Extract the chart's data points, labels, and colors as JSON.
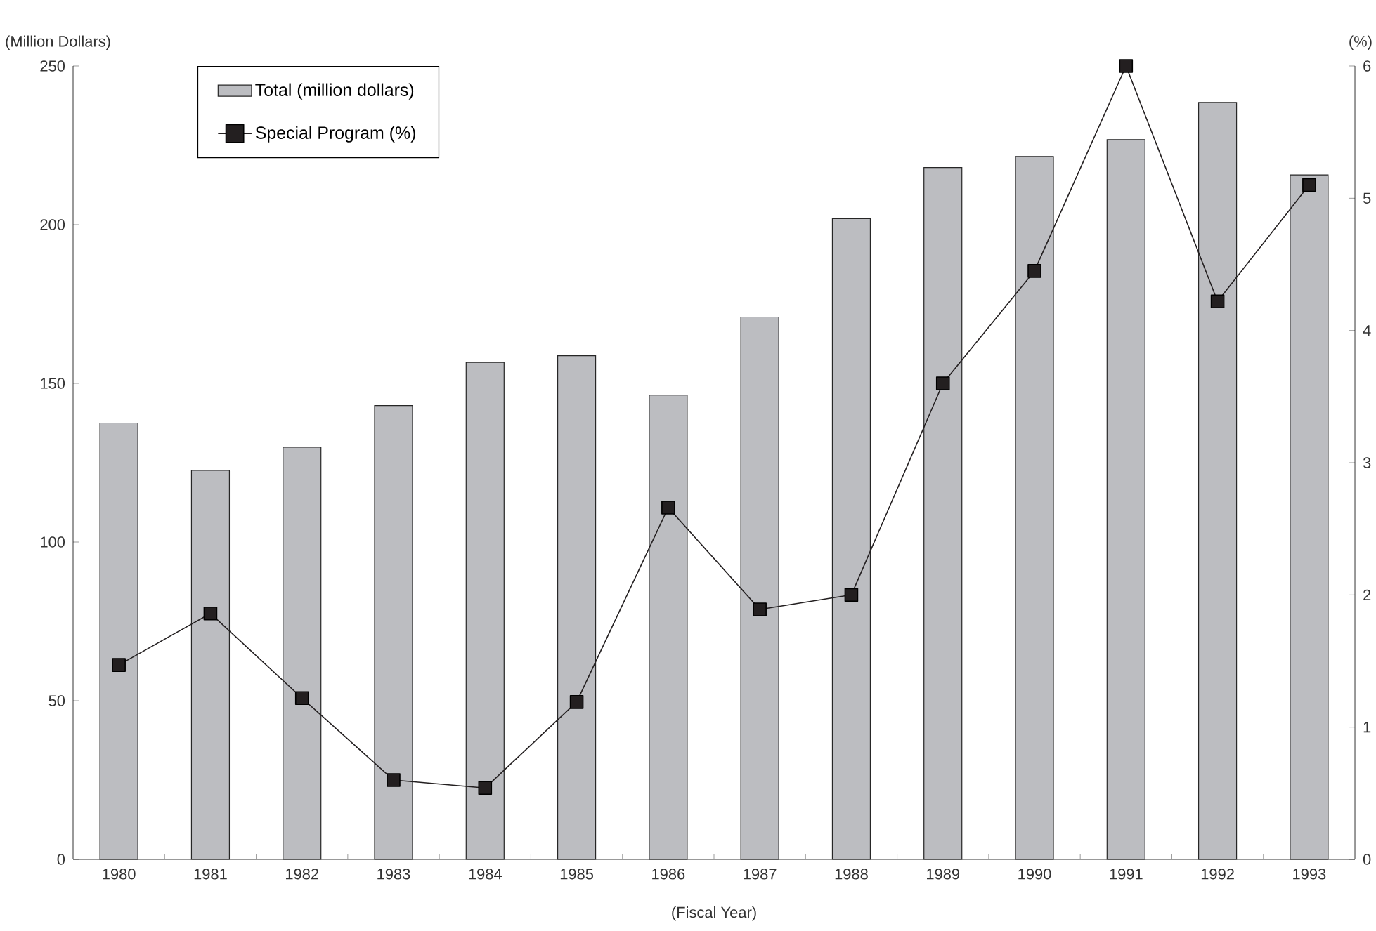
{
  "chart_data": {
    "type": "bar",
    "xlabel": "(Fiscal Year)",
    "ylabel": "(Million Dollars)",
    "y2label": "(%)",
    "categories": [
      "1980",
      "1981",
      "1982",
      "1983",
      "1984",
      "1985",
      "1986",
      "1987",
      "1988",
      "1989",
      "1990",
      "1991",
      "1992",
      "1993"
    ],
    "series": [
      {
        "name": "Total (million dollars)",
        "color": "#bcbdc1",
        "values": [
          137.5,
          122.6,
          129.9,
          143,
          156.6,
          158.7,
          146.3,
          170.9,
          201.9,
          218,
          221.5,
          226.8,
          238.5,
          215.7
        ]
      },
      {
        "name": "Special Program (%)",
        "type": "line",
        "axis": "y2",
        "marker": "square",
        "color": "#231f20",
        "values": [
          1.47,
          1.86,
          1.22,
          0.6,
          0.54,
          1.19,
          2.66,
          1.89,
          2.0,
          3.6,
          4.45,
          6.0,
          4.22,
          5.1
        ]
      }
    ],
    "ylim": [
      0,
      250
    ],
    "yticks": [
      0,
      50,
      100,
      150,
      200,
      250
    ],
    "y2lim": [
      0,
      6
    ],
    "y2ticks": [
      0,
      1,
      2,
      3,
      4,
      5,
      6
    ],
    "legend": "top left"
  }
}
